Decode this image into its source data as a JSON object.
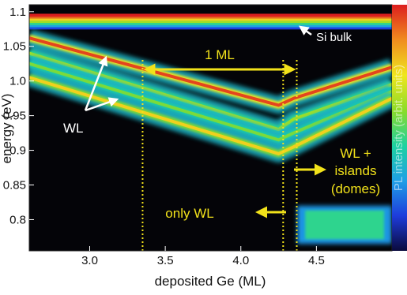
{
  "chart_data": {
    "type": "heatmap",
    "title": "",
    "xlabel": "deposited Ge (ML)",
    "ylabel": "energy (eV)",
    "colorbar_label": "PL intensity (arbit. units)",
    "xlim": [
      2.6,
      5.0
    ],
    "ylim": [
      0.755,
      1.11
    ],
    "xticks": [
      3.0,
      3.5,
      4.0,
      4.5
    ],
    "xtick_labels": [
      "3.0",
      "3.5",
      "4.0",
      "4.5"
    ],
    "yticks": [
      0.8,
      0.85,
      0.9,
      0.95,
      1.0,
      1.05,
      1.1
    ],
    "ytick_labels": [
      "0.8",
      "0.85",
      "0.9",
      "0.95",
      "1.0",
      "1.05",
      "1.1"
    ],
    "colormap": [
      "#0a0a3c",
      "#1e3cdc",
      "#1ea0e6",
      "#1ed2a0",
      "#8cdc28",
      "#f0e61e",
      "#f08c1e",
      "#dc1e1e"
    ],
    "accent_annotation_color": "#f2e21a",
    "si_bulk": {
      "energy_eV": 1.094,
      "band": [
        1.075,
        1.097
      ]
    },
    "wetting_layer_lines": [
      {
        "name": "",
        "x": [
          2.6,
          4.25,
          4.35,
          5.0
        ],
        "energy_eV": [
          1.062,
          0.965,
          0.975,
          1.02
        ],
        "intensity": 0.95
      },
      {
        "name": "",
        "x": [
          2.6,
          4.25,
          4.35,
          5.0
        ],
        "energy_eV": [
          1.04,
          0.93,
          0.945,
          0.995
        ],
        "intensity": 0.6
      },
      {
        "name": "",
        "x": [
          2.6,
          4.25,
          4.35,
          5.0
        ],
        "energy_eV": [
          1.025,
          0.915,
          0.925,
          0.985
        ],
        "intensity": 0.55
      },
      {
        "name": "",
        "x": [
          2.6,
          4.25,
          4.35,
          5.0
        ],
        "energy_eV": [
          1.005,
          0.895,
          0.905,
          0.975
        ],
        "intensity": 0.75
      }
    ],
    "islands_region": {
      "x": [
        4.3,
        5.0
      ],
      "energy_eV": [
        0.765,
        0.82
      ],
      "intensity": 0.45
    },
    "vertical_markers": [
      {
        "x": 3.35
      },
      {
        "x": 4.28
      },
      {
        "x": 4.37
      }
    ],
    "annotations": {
      "si_bulk": "Si bulk",
      "wl": "WL",
      "one_ml": "1 ML",
      "only_wl": "only WL",
      "wl_plus": "WL +",
      "islands": "islands",
      "domes": "(domes)"
    },
    "span_1ml": {
      "from_x": 3.35,
      "to_x": 4.37
    }
  }
}
